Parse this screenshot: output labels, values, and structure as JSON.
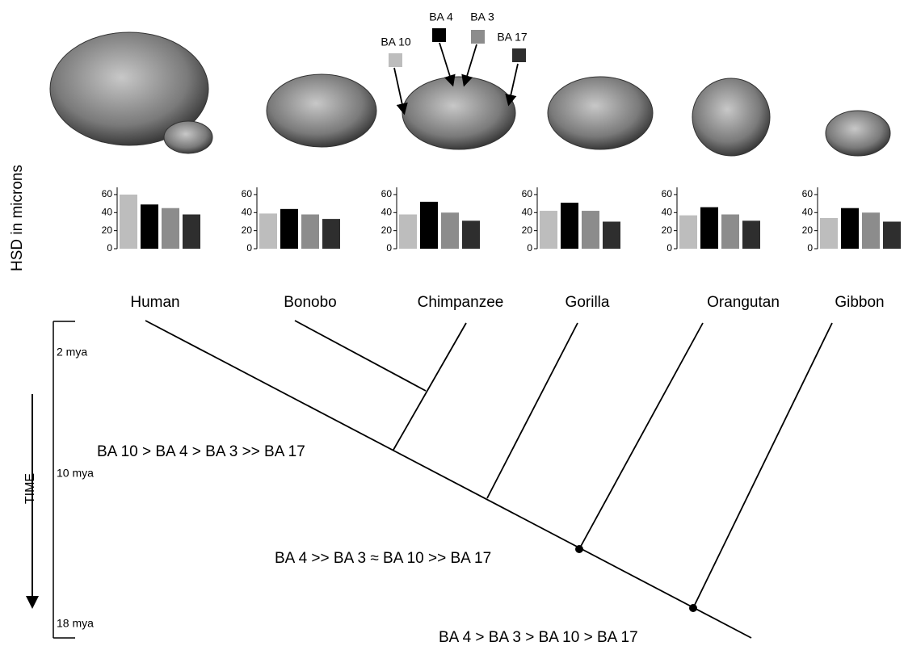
{
  "figure": {
    "y_label": "HSD in microns",
    "legend": [
      {
        "name": "BA 10",
        "color": "#bdbdbd"
      },
      {
        "name": "BA 4",
        "color": "#000000"
      },
      {
        "name": "BA 3",
        "color": "#8c8c8c"
      },
      {
        "name": "BA 17",
        "color": "#2e2e2e"
      }
    ],
    "time_label": "TIME",
    "time_marks": [
      "2 mya",
      "10 mya",
      "18 mya"
    ],
    "annotations": [
      "BA 10 > BA 4 > BA 3 >> BA 17",
      "BA 4 >> BA 3 ≈  BA 10 >> BA 17",
      "BA 4 > BA 3 > BA 10 > BA 17"
    ]
  },
  "chart_data": [
    {
      "type": "bar",
      "title": "Human",
      "values": [
        60,
        49,
        45,
        38
      ],
      "colors": [
        "#bdbdbd",
        "#000000",
        "#8c8c8c",
        "#2e2e2e"
      ],
      "ylim": [
        0,
        68
      ],
      "yticks": [
        0,
        20,
        40,
        60
      ]
    },
    {
      "type": "bar",
      "title": "Bonobo",
      "values": [
        39,
        44,
        38,
        33
      ],
      "colors": [
        "#bdbdbd",
        "#000000",
        "#8c8c8c",
        "#2e2e2e"
      ],
      "ylim": [
        0,
        68
      ],
      "yticks": [
        0,
        20,
        40,
        60
      ]
    },
    {
      "type": "bar",
      "title": "Chimpanzee",
      "values": [
        38,
        52,
        40,
        31
      ],
      "colors": [
        "#bdbdbd",
        "#000000",
        "#8c8c8c",
        "#2e2e2e"
      ],
      "ylim": [
        0,
        68
      ],
      "yticks": [
        0,
        20,
        40,
        60
      ]
    },
    {
      "type": "bar",
      "title": "Gorilla",
      "values": [
        42,
        51,
        42,
        30
      ],
      "colors": [
        "#bdbdbd",
        "#000000",
        "#8c8c8c",
        "#2e2e2e"
      ],
      "ylim": [
        0,
        68
      ],
      "yticks": [
        0,
        20,
        40,
        60
      ]
    },
    {
      "type": "bar",
      "title": "Orangutan",
      "values": [
        37,
        46,
        38,
        31
      ],
      "colors": [
        "#bdbdbd",
        "#000000",
        "#8c8c8c",
        "#2e2e2e"
      ],
      "ylim": [
        0,
        68
      ],
      "yticks": [
        0,
        20,
        40,
        60
      ]
    },
    {
      "type": "bar",
      "title": "Gibbon",
      "values": [
        34,
        45,
        40,
        30
      ],
      "colors": [
        "#bdbdbd",
        "#000000",
        "#8c8c8c",
        "#2e2e2e"
      ],
      "ylim": [
        0,
        68
      ],
      "yticks": [
        0,
        20,
        40,
        60
      ]
    }
  ]
}
